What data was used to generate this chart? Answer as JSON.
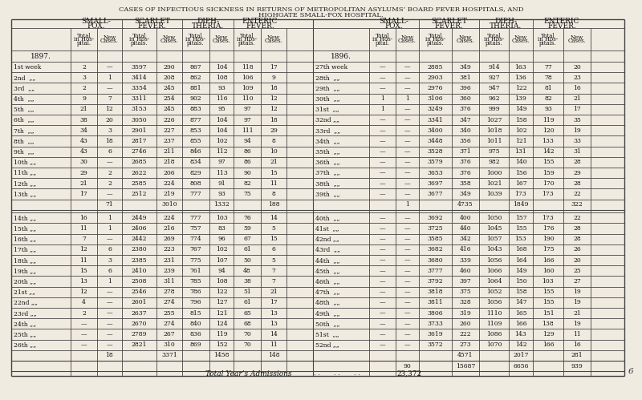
{
  "title_line1": "CASES OF INFECTIOUS SICKNESS IN RETURNS OF METROPOLITAN ASYLUMS’ BOARD FEVER HOSPITALS, AND",
  "title_line2": "HIGHGATE SMALL-POX HOSPITAL.",
  "bg_color": "#f0ebe0",
  "year_left": "1897.",
  "year_right": "1896.",
  "rows_left": [
    [
      "1st week",
      "2",
      "—",
      "3597",
      "290",
      "867",
      "104",
      "118",
      "17"
    ],
    [
      "2nd  „„",
      "3",
      "1",
      "3414",
      "208",
      "862",
      "108",
      "106",
      "9"
    ],
    [
      "3rd  „„",
      "2",
      "—",
      "3354",
      "245",
      "881",
      "93",
      "109",
      "18"
    ],
    [
      "4th  „„",
      "9",
      "7",
      "3311",
      "254",
      "902",
      "116",
      "110",
      "12"
    ],
    [
      "5th  „„",
      "21",
      "12",
      "3153",
      "245",
      "883",
      "95",
      "97",
      "12"
    ],
    [
      "6th  „„",
      "38",
      "20",
      "3050",
      "226",
      "877",
      "104",
      "97",
      "18"
    ],
    [
      "7th  „„",
      "34",
      "3",
      "2901",
      "227",
      "853",
      "104",
      "111",
      "29"
    ],
    [
      "8th  „„",
      "43",
      "18",
      "2817",
      "237",
      "855",
      "102",
      "94",
      "8"
    ],
    [
      "9th  „„",
      "43",
      "6",
      "2746",
      "211",
      "846",
      "112",
      "86",
      "10"
    ],
    [
      "10th „„",
      "30",
      "—",
      "2685",
      "218",
      "834",
      "97",
      "86",
      "21"
    ],
    [
      "11th „„",
      "29",
      "2",
      "2622",
      "206",
      "829",
      "113",
      "90",
      "15"
    ],
    [
      "12th „„",
      "21",
      "2",
      "2585",
      "224",
      "808",
      "91",
      "82",
      "11"
    ],
    [
      "13th „„",
      "17",
      "—",
      "2512",
      "219",
      "777",
      "93",
      "75",
      "8"
    ]
  ],
  "subtotal_left": [
    "",
    "71",
    "",
    "3010",
    "",
    "1332",
    "",
    "188"
  ],
  "rows_left2": [
    [
      "14th „„",
      "16",
      "1",
      "2449",
      "224",
      "777",
      "103",
      "76",
      "14"
    ],
    [
      "15th „„",
      "11",
      "1",
      "2406",
      "216",
      "757",
      "83",
      "59",
      "5"
    ],
    [
      "16th „„",
      "7",
      "—",
      "2442",
      "269",
      "774",
      "96",
      "67",
      "15"
    ],
    [
      "17th „„",
      "12",
      "6",
      "2380",
      "223",
      "767",
      "102",
      "61",
      "6"
    ],
    [
      "18th „„",
      "11",
      "3",
      "2385",
      "231",
      "775",
      "107",
      "50",
      "5"
    ],
    [
      "19th „„",
      "15",
      "6",
      "2410",
      "239",
      "761",
      "94",
      "48",
      "7"
    ],
    [
      "20th „„",
      "13",
      "1",
      "2508",
      "311",
      "785",
      "108",
      "38",
      "7"
    ],
    [
      "21st „„",
      "12",
      "—",
      "2546",
      "278",
      "786",
      "122",
      "51",
      "21"
    ],
    [
      "22nd „„",
      "4",
      "—",
      "2601",
      "274",
      "796",
      "127",
      "61",
      "17"
    ],
    [
      "23rd „„",
      "2",
      "—",
      "2637",
      "255",
      "815",
      "121",
      "65",
      "13"
    ],
    [
      "24th „„",
      "—",
      "—",
      "2670",
      "274",
      "840",
      "124",
      "68",
      "13"
    ],
    [
      "25th „„",
      "—",
      "—",
      "2789",
      "267",
      "836",
      "119",
      "70",
      "14"
    ],
    [
      "26th „„",
      "—",
      "—",
      "2821",
      "310",
      "869",
      "152",
      "70",
      "11"
    ]
  ],
  "subtotal_left2": [
    "",
    "18",
    "",
    "3371",
    "",
    "1458",
    "",
    "148"
  ],
  "rows_right": [
    [
      "27th week",
      "—",
      "—",
      "2885",
      "349",
      "914",
      "163",
      "77",
      "20"
    ],
    [
      "28th  „„",
      "—",
      "—",
      "2903",
      "381",
      "927",
      "136",
      "78",
      "23"
    ],
    [
      "29th  „„",
      "—",
      "—",
      "2976",
      "396",
      "947",
      "122",
      "81",
      "16"
    ],
    [
      "30th  „„",
      "1",
      "1",
      "3106",
      "360",
      "962",
      "139",
      "82",
      "21"
    ],
    [
      "31st  „„",
      "1",
      "—",
      "3249",
      "376",
      "999",
      "149",
      "93",
      "17"
    ],
    [
      "32nd „„",
      "—",
      "—",
      "3341",
      "347",
      "1027",
      "158",
      "119",
      "35"
    ],
    [
      "33rd  „„",
      "—",
      "—",
      "3400",
      "340",
      "1018",
      "102",
      "120",
      "19"
    ],
    [
      "34th  „„",
      "—",
      "—",
      "3448",
      "356",
      "1011",
      "121",
      "133",
      "33"
    ],
    [
      "35th  „„",
      "—",
      "—",
      "3528",
      "371",
      "975",
      "131",
      "142",
      "31"
    ],
    [
      "36th  „„",
      "—",
      "—",
      "3579",
      "376",
      "982",
      "140",
      "155",
      "28"
    ],
    [
      "37th  „„",
      "—",
      "—",
      "3653",
      "376",
      "1000",
      "156",
      "159",
      "29"
    ],
    [
      "38th  „„",
      "—",
      "—",
      "3697",
      "358",
      "1021",
      "167",
      "170",
      "28"
    ],
    [
      "39th  „„",
      "—",
      "—",
      "3677",
      "349",
      "1039",
      "173",
      "173",
      "22"
    ]
  ],
  "subtotal_right1": [
    "",
    "1",
    "",
    "4735",
    "",
    "1849",
    "",
    "322"
  ],
  "rows_right2": [
    [
      "40th  „„",
      "—",
      "—",
      "3692",
      "400",
      "1050",
      "157",
      "173",
      "22"
    ],
    [
      "41st  „„",
      "—",
      "—",
      "3725",
      "440",
      "1045",
      "155",
      "176",
      "28"
    ],
    [
      "42nd „„",
      "—",
      "—",
      "3585",
      "342",
      "1057",
      "153",
      "190",
      "28"
    ],
    [
      "43rd  „„",
      "—",
      "—",
      "3682",
      "416",
      "1043",
      "168",
      "175",
      "26"
    ],
    [
      "44th  „„",
      "—",
      "—",
      "3680",
      "339",
      "1056",
      "164",
      "166",
      "20"
    ],
    [
      "45th  „„",
      "—",
      "—",
      "3777",
      "460",
      "1066",
      "149",
      "160",
      "25"
    ],
    [
      "46th  „„",
      "—",
      "—",
      "3792",
      "397",
      "1064",
      "150",
      "103",
      "27"
    ],
    [
      "47th  „„",
      "—",
      "—",
      "3818",
      "375",
      "1052",
      "158",
      "155",
      "19"
    ],
    [
      "48th  „„",
      "—",
      "—",
      "3811",
      "328",
      "1056",
      "147",
      "155",
      "19"
    ],
    [
      "49th  „„",
      "—",
      "—",
      "3806",
      "319",
      "1110",
      "165",
      "151",
      "21"
    ],
    [
      "50th  „„",
      "—",
      "—",
      "3733",
      "260",
      "1109",
      "166",
      "138",
      "19"
    ],
    [
      "51st  „„",
      "—",
      "—",
      "3619",
      "222",
      "1086",
      "143",
      "129",
      "11"
    ],
    [
      "52nd „„",
      "—",
      "—",
      "3572",
      "273",
      "1070",
      "142",
      "166",
      "16"
    ]
  ],
  "subtotal_right2a": [
    "",
    "90",
    "",
    "15687",
    "",
    "6656",
    "",
    "939"
  ],
  "subtotal_right2b": [
    "",
    "",
    "",
    "4571",
    "",
    "2017",
    "",
    "281"
  ],
  "total_year": "23,372",
  "page_num": "6"
}
